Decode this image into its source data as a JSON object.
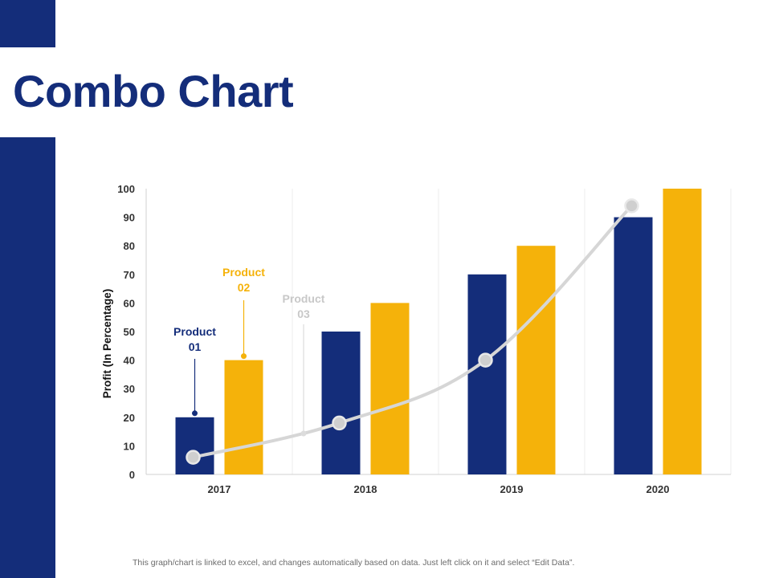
{
  "page": {
    "title": "Combo Chart",
    "footer": "This graph/chart is linked to excel,  and changes automatically based on data. Just left click on it and select “Edit Data”."
  },
  "colors": {
    "accent": "#142d7a",
    "product01": "#142d7a",
    "product02": "#f5b20a",
    "product03": "#d6d6d6",
    "label03": "#c8c8c8"
  },
  "chart_data": {
    "type": "bar",
    "categories": [
      "2017",
      "2018",
      "2019",
      "2020"
    ],
    "series": [
      {
        "name": "Product 01",
        "kind": "bar",
        "values": [
          20,
          50,
          70,
          90
        ]
      },
      {
        "name": "Product 02",
        "kind": "bar",
        "values": [
          40,
          60,
          80,
          100
        ]
      },
      {
        "name": "Product 03",
        "kind": "line",
        "values": [
          6,
          18,
          40,
          94
        ]
      }
    ],
    "title": "",
    "xlabel": "",
    "ylabel": "Profit (In Percentage)",
    "ylim": [
      0,
      100
    ],
    "yticks": [
      0,
      10,
      20,
      30,
      40,
      50,
      60,
      70,
      80,
      90,
      100
    ],
    "grid": "vertical",
    "annotations": [
      {
        "series": 0,
        "line1": "Product",
        "line2": "01"
      },
      {
        "series": 1,
        "line1": "Product",
        "line2": "02"
      },
      {
        "series": 2,
        "line1": "Product",
        "line2": "03"
      }
    ]
  }
}
